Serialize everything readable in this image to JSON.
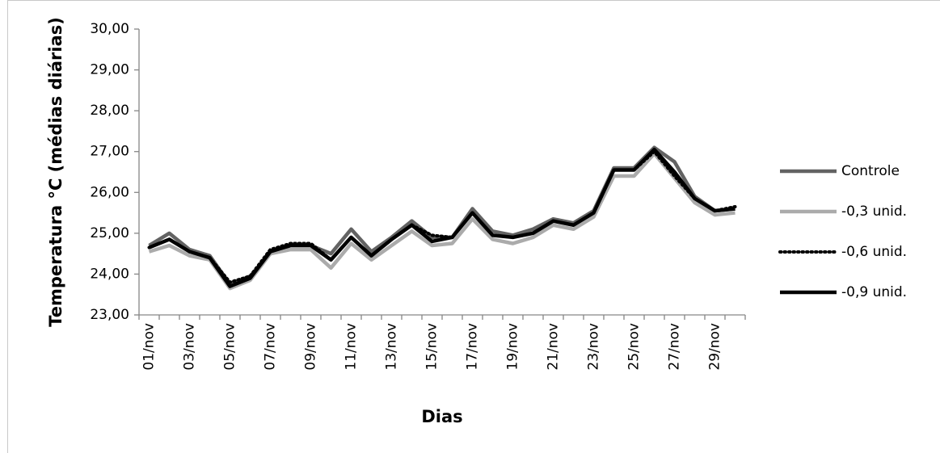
{
  "chart_data": {
    "type": "line",
    "x_label": "Dias",
    "y_label": "Temperatura °C (médias diárias)",
    "categories": [
      "01/nov",
      null,
      "03/nov",
      null,
      "05/nov",
      null,
      "07/nov",
      null,
      "09/nov",
      null,
      "11/nov",
      null,
      "13/nov",
      null,
      "15/nov",
      null,
      "17/nov",
      null,
      "19/nov",
      null,
      "21/nov",
      null,
      "23/nov",
      null,
      "25/nov",
      null,
      "27/nov",
      null,
      "29/nov",
      null
    ],
    "ylim": [
      23,
      30
    ],
    "yticks": [
      {
        "value": 23,
        "label": "23,00"
      },
      {
        "value": 24,
        "label": "24,00"
      },
      {
        "value": 25,
        "label": "25,00"
      },
      {
        "value": 26,
        "label": "26,00"
      },
      {
        "value": 27,
        "label": "27,00"
      },
      {
        "value": 28,
        "label": "28,00"
      },
      {
        "value": 29,
        "label": "29,00"
      },
      {
        "value": 30,
        "label": "30,00"
      }
    ],
    "grid": false,
    "legend": "right",
    "series": [
      {
        "name": "Controle",
        "color": "#636363",
        "line_style": "solid",
        "values": [
          24.7,
          25.0,
          24.6,
          24.45,
          23.75,
          23.95,
          24.5,
          24.7,
          24.7,
          24.5,
          25.1,
          24.55,
          24.9,
          25.3,
          24.9,
          24.9,
          25.6,
          25.05,
          24.95,
          25.1,
          25.35,
          25.25,
          25.55,
          26.6,
          26.6,
          27.1,
          26.75,
          25.9,
          25.55,
          25.6
        ]
      },
      {
        "name": "-0,3 unid.",
        "color": "#ababab",
        "line_style": "solid",
        "values": [
          24.55,
          24.7,
          24.45,
          24.35,
          23.65,
          23.85,
          24.5,
          24.6,
          24.6,
          24.15,
          24.75,
          24.35,
          24.7,
          25.05,
          24.7,
          24.75,
          25.35,
          24.85,
          24.75,
          24.9,
          25.2,
          25.1,
          25.4,
          26.4,
          26.4,
          26.95,
          26.35,
          25.75,
          25.45,
          25.5
        ]
      },
      {
        "name": "-0,6 unid.",
        "color": "#000000",
        "line_style": "dotted",
        "values": [
          24.65,
          24.85,
          24.55,
          24.4,
          23.8,
          23.95,
          24.6,
          24.75,
          24.75,
          24.35,
          24.9,
          24.45,
          24.85,
          25.2,
          24.95,
          24.9,
          25.5,
          24.95,
          24.9,
          25.0,
          25.3,
          25.2,
          25.5,
          26.55,
          26.55,
          27.0,
          26.4,
          25.85,
          25.55,
          25.65
        ]
      },
      {
        "name": "-0,9 unid.",
        "color": "#000000",
        "line_style": "solid",
        "values": [
          24.65,
          24.85,
          24.55,
          24.4,
          23.7,
          23.9,
          24.55,
          24.7,
          24.7,
          24.35,
          24.9,
          24.45,
          24.85,
          25.2,
          24.8,
          24.9,
          25.5,
          24.95,
          24.9,
          25.0,
          25.3,
          25.2,
          25.5,
          26.55,
          26.55,
          27.05,
          26.5,
          25.85,
          25.55,
          25.6
        ]
      }
    ]
  }
}
